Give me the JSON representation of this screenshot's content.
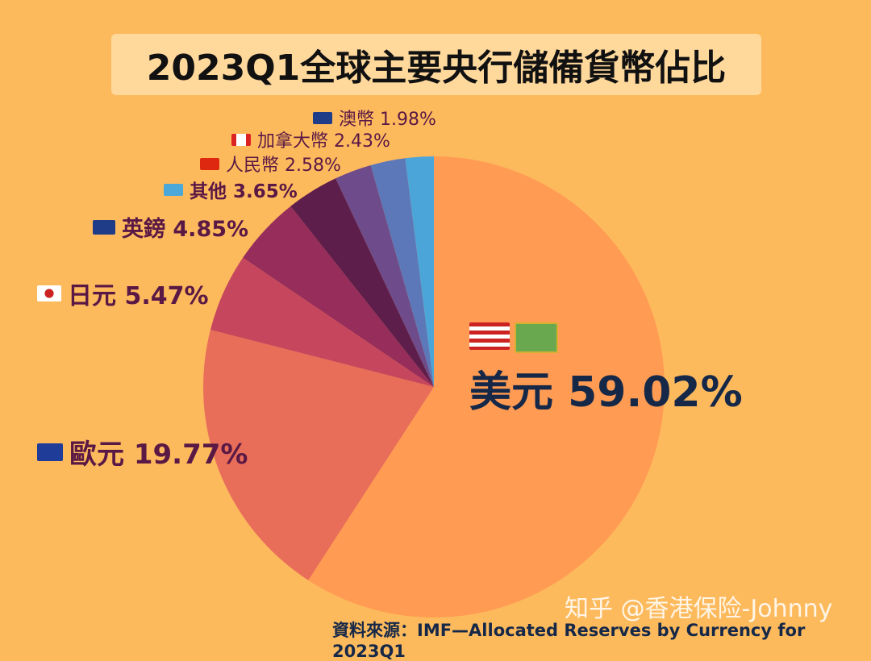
{
  "title": "2023Q1全球主要央行儲備貨幣佔比",
  "chart_data": {
    "type": "pie",
    "title": "2023Q1全球主要央行儲備貨幣佔比",
    "slices": [
      {
        "label": "美元",
        "value": 59.02,
        "text": "美元 59.02%",
        "color": "#FF9B52",
        "flag": "us-flag-icon"
      },
      {
        "label": "歐元",
        "value": 19.77,
        "text": "歐元 19.77%",
        "color": "#E86E5A",
        "flag": "eu-flag-icon"
      },
      {
        "label": "日元",
        "value": 5.47,
        "text": "日元 5.47%",
        "color": "#C6475D",
        "flag": "jp-flag-icon"
      },
      {
        "label": "英鎊",
        "value": 4.85,
        "text": "英鎊 4.85%",
        "color": "#962D5B",
        "flag": "uk-flag-icon"
      },
      {
        "label": "其他",
        "value": 3.65,
        "text": "其他 3.65%",
        "color": "#5E1E4C",
        "flag": "un-flag-icon"
      },
      {
        "label": "人民幣",
        "value": 2.58,
        "text": "人民幣 2.58%",
        "color": "#6E4B8A",
        "flag": "cn-flag-icon"
      },
      {
        "label": "加拿大幣",
        "value": 2.43,
        "text": "加拿大幣 2.43%",
        "color": "#5C78B8",
        "flag": "ca-flag-icon"
      },
      {
        "label": "澳幣",
        "value": 1.98,
        "text": "澳幣 1.98%",
        "color": "#4BA5D8",
        "flag": "au-flag-icon"
      }
    ]
  },
  "source": "資料來源：IMF—Allocated Reserves by Currency for 2023Q1",
  "watermark": "知乎 @香港保险-Johnny",
  "background_color": "#FDBA5D"
}
